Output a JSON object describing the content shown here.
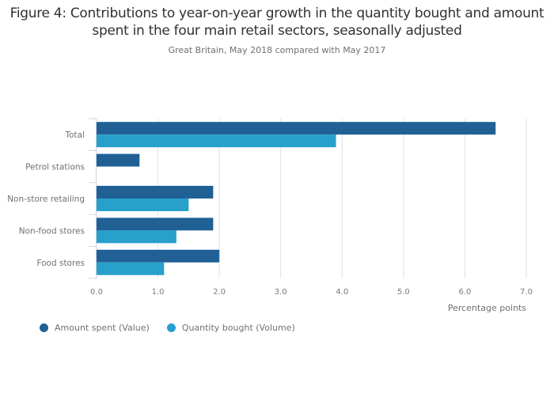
{
  "chart_data": {
    "type": "bar",
    "orientation": "horizontal",
    "title": "Figure 4: Contributions to year-on-year growth in the quantity bought and amount spent in the four main retail sectors, seasonally adjusted",
    "subtitle": "Great Britain, May 2018 compared with May 2017",
    "xlabel": "Percentage points",
    "ylabel": "",
    "xlim": [
      0,
      7
    ],
    "xticks": [
      0,
      1,
      2,
      3,
      4,
      5,
      6,
      7
    ],
    "xtick_labels": [
      "0.0",
      "1.0",
      "2.0",
      "3.0",
      "4.0",
      "5.0",
      "6.0",
      "7.0"
    ],
    "grid": true,
    "legend_position": "bottom-left",
    "categories": [
      "Total",
      "Petrol stations",
      "Non-store retailing",
      "Non-food stores",
      "Food stores"
    ],
    "series": [
      {
        "name": "Amount spent (Value)",
        "color": "#206095",
        "values": [
          6.5,
          0.7,
          1.9,
          1.9,
          2.0
        ]
      },
      {
        "name": "Quantity bought (Volume)",
        "color": "#27a0cc",
        "values": [
          3.9,
          0.0,
          1.5,
          1.3,
          1.1
        ]
      }
    ]
  }
}
